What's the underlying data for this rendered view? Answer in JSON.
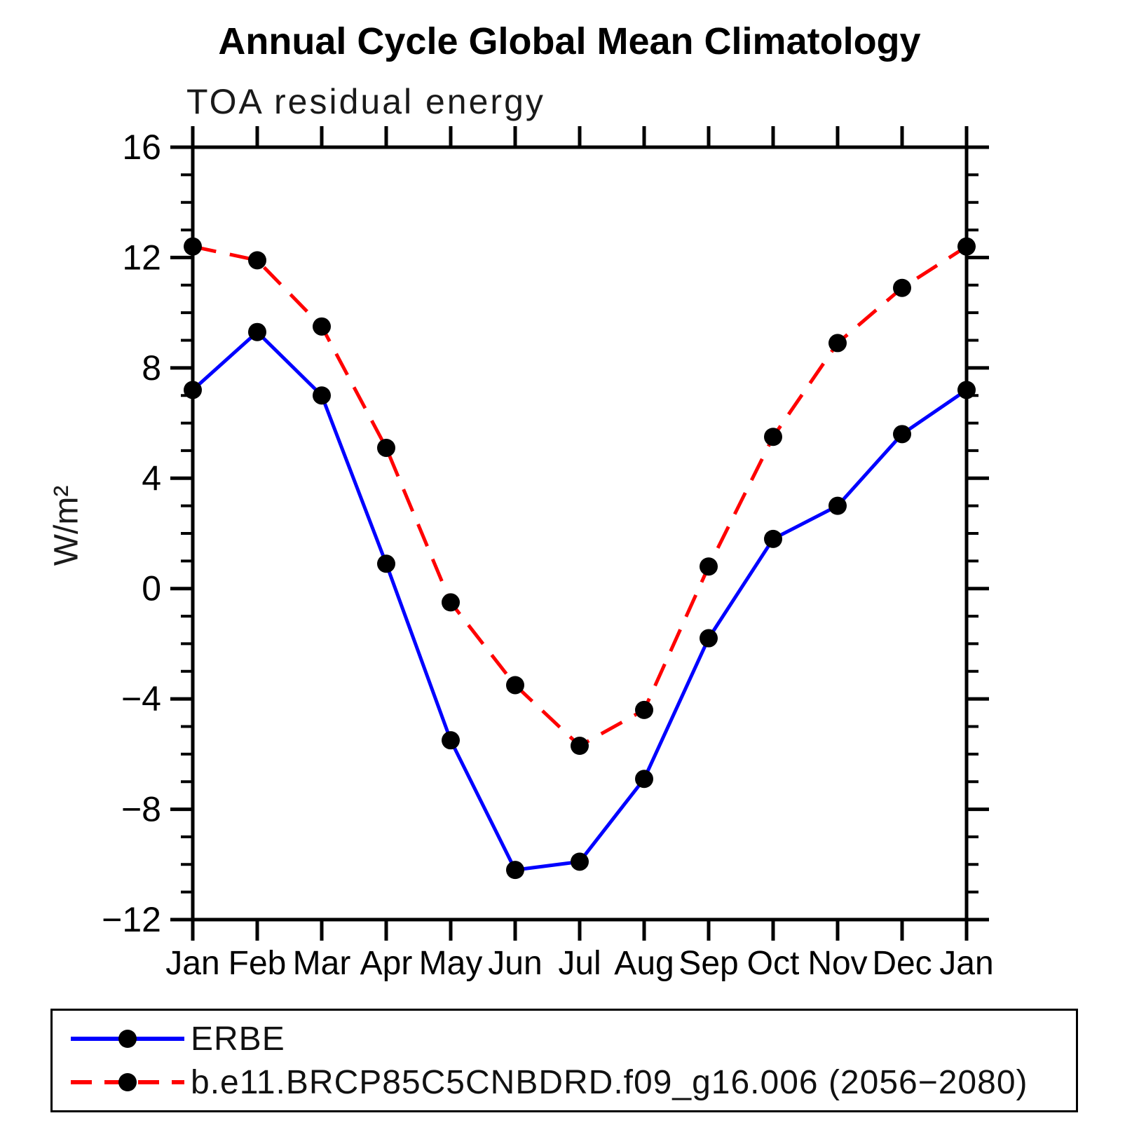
{
  "chart_data": {
    "type": "line",
    "title": "Annual Cycle Global Mean Climatology",
    "subtitle": "TOA residual energy",
    "xlabel": "",
    "ylabel": "W/m²",
    "categories": [
      "Jan",
      "Feb",
      "Mar",
      "Apr",
      "May",
      "Jun",
      "Jul",
      "Aug",
      "Sep",
      "Oct",
      "Nov",
      "Dec",
      "Jan"
    ],
    "ylim": [
      -12,
      16
    ],
    "y_minor_step": 1,
    "yticks": [
      {
        "v": 16,
        "label": "16"
      },
      {
        "v": 12,
        "label": "12"
      },
      {
        "v": 8,
        "label": "8"
      },
      {
        "v": 4,
        "label": "4"
      },
      {
        "v": 0,
        "label": "0"
      },
      {
        "v": -4,
        "label": "−4"
      },
      {
        "v": -8,
        "label": "−8"
      },
      {
        "v": -12,
        "label": "−12"
      }
    ],
    "grid": false,
    "legend_position": "bottom",
    "marker": "circle",
    "marker_color": "#000000",
    "axis_color": "#000000",
    "series": [
      {
        "name": "ERBE",
        "color": "#0000ff",
        "line_style": "solid",
        "values": [
          7.2,
          9.3,
          7.0,
          0.9,
          -5.5,
          -10.2,
          -9.9,
          -6.9,
          -1.8,
          1.8,
          3.0,
          5.6,
          7.2
        ]
      },
      {
        "name": "b.e11.BRCP85C5CNBDRD.f09_g16.006 (2056−2080)",
        "color": "#ff0000",
        "line_style": "dashed",
        "values": [
          12.4,
          11.9,
          9.5,
          5.1,
          -0.5,
          -3.5,
          -5.7,
          -4.4,
          0.8,
          5.5,
          8.9,
          10.9,
          12.4
        ]
      }
    ]
  }
}
